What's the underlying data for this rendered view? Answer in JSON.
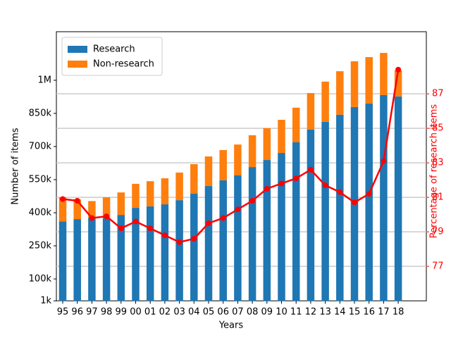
{
  "chart_data": {
    "type": "bar",
    "stacked": true,
    "x_label": "Years",
    "y_label": "Number of items",
    "y2_label": "Percentage of research items",
    "categories": [
      "95",
      "96",
      "97",
      "98",
      "99",
      "00",
      "01",
      "02",
      "03",
      "04",
      "05",
      "06",
      "07",
      "08",
      "09",
      "10",
      "11",
      "12",
      "13",
      "14",
      "15",
      "16",
      "17",
      "18"
    ],
    "series": [
      {
        "name": "Research",
        "color": "#1f77b4",
        "values": [
          361000,
          371000,
          377000,
          377000,
          390000,
          422000,
          429000,
          438000,
          457000,
          486000,
          521000,
          547000,
          569000,
          607000,
          639000,
          671000,
          719000,
          777000,
          812000,
          844000,
          879000,
          895000,
          933000,
          927000
        ]
      },
      {
        "name": "Non-research",
        "color": "#ff7f0e",
        "values": [
          109000,
          90000,
          76000,
          93000,
          102000,
          109000,
          114000,
          118000,
          125000,
          134000,
          134000,
          137000,
          140000,
          144000,
          144000,
          150000,
          157000,
          165000,
          182000,
          197000,
          207000,
          210000,
          191000,
          118000
        ]
      },
      {
        "type": "line",
        "axis": "y2",
        "color": "#ff0000",
        "values": [
          80.9,
          80.8,
          79.8,
          79.9,
          79.2,
          79.6,
          79.2,
          78.8,
          78.4,
          78.6,
          79.5,
          79.8,
          80.3,
          80.8,
          81.5,
          81.8,
          82.1,
          82.6,
          81.7,
          81.3,
          80.7,
          81.2,
          83.1,
          88.4
        ]
      }
    ],
    "ylim": [
      1000,
      1220000
    ],
    "yticks": [
      {
        "value": 1000,
        "label": "1k"
      },
      {
        "value": 100000,
        "label": "100k"
      },
      {
        "value": 250000,
        "label": "250k"
      },
      {
        "value": 400000,
        "label": "400k"
      },
      {
        "value": 550000,
        "label": "550k"
      },
      {
        "value": 700000,
        "label": "700k"
      },
      {
        "value": 850000,
        "label": "850k"
      },
      {
        "value": 1000000,
        "label": "1M"
      }
    ],
    "y2lim": [
      75,
      90.6
    ],
    "y2ticks": [
      77,
      79,
      81,
      83,
      85,
      87
    ],
    "y2_color": "#ff0000",
    "grid": "y2",
    "legend": "upper left"
  }
}
